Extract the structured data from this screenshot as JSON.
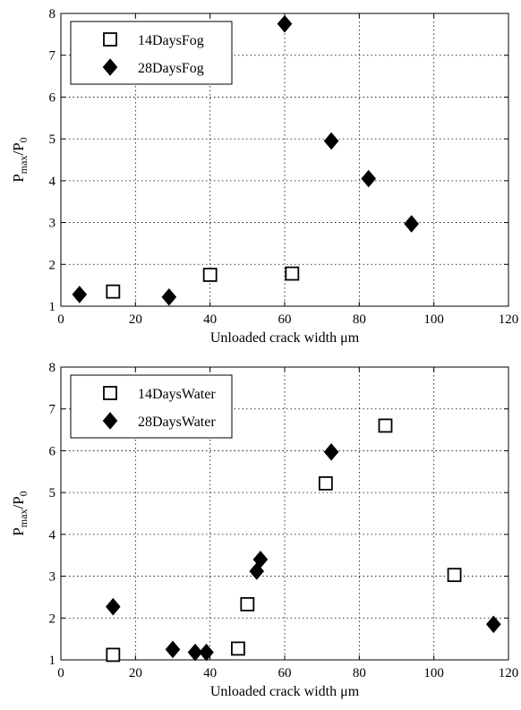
{
  "chart_data": [
    {
      "type": "scatter",
      "xlabel": "Unloaded crack width μm",
      "ylabel": {
        "main": "P",
        "sub1": "max",
        "sep": "/P",
        "sub2": "0"
      },
      "xlim": [
        0,
        120
      ],
      "ylim": [
        1,
        8
      ],
      "xticks": [
        "0",
        "20",
        "40",
        "60",
        "80",
        "100",
        "120"
      ],
      "yticks": [
        "1",
        "2",
        "3",
        "4",
        "5",
        "6",
        "7",
        "8"
      ],
      "grid": true,
      "legend_position": "top-left",
      "series": [
        {
          "name": "14DaysFog",
          "marker": "square-open",
          "points": [
            [
              14,
              1.35
            ],
            [
              40,
              1.75
            ],
            [
              62,
              1.78
            ]
          ]
        },
        {
          "name": "28DaysFog",
          "marker": "diamond-filled",
          "points": [
            [
              5,
              1.28
            ],
            [
              29,
              1.22
            ],
            [
              60,
              7.75
            ],
            [
              72.5,
              4.95
            ],
            [
              82.5,
              4.05
            ],
            [
              94,
              2.97
            ]
          ]
        }
      ]
    },
    {
      "type": "scatter",
      "xlabel": "Unloaded crack width μm",
      "ylabel": {
        "main": "P",
        "sub1": "max",
        "sep": "/P",
        "sub2": "0"
      },
      "xlim": [
        0,
        120
      ],
      "ylim": [
        1,
        8
      ],
      "xticks": [
        "0",
        "20",
        "40",
        "60",
        "80",
        "100",
        "120"
      ],
      "yticks": [
        "1",
        "2",
        "3",
        "4",
        "5",
        "6",
        "7",
        "8"
      ],
      "grid": true,
      "legend_position": "top-left",
      "series": [
        {
          "name": "14DaysWater",
          "marker": "square-open",
          "points": [
            [
              14,
              1.12
            ],
            [
              47.5,
              1.27
            ],
            [
              50,
              2.33
            ],
            [
              71,
              5.22
            ],
            [
              87,
              6.6
            ],
            [
              105.5,
              3.03
            ]
          ]
        },
        {
          "name": "28DaysWater",
          "marker": "diamond-filled",
          "points": [
            [
              14,
              2.27
            ],
            [
              30,
              1.25
            ],
            [
              36,
              1.18
            ],
            [
              39,
              1.18
            ],
            [
              52.5,
              3.12
            ],
            [
              53.5,
              3.4
            ],
            [
              72.5,
              5.97
            ],
            [
              116,
              1.85
            ]
          ]
        }
      ]
    }
  ]
}
